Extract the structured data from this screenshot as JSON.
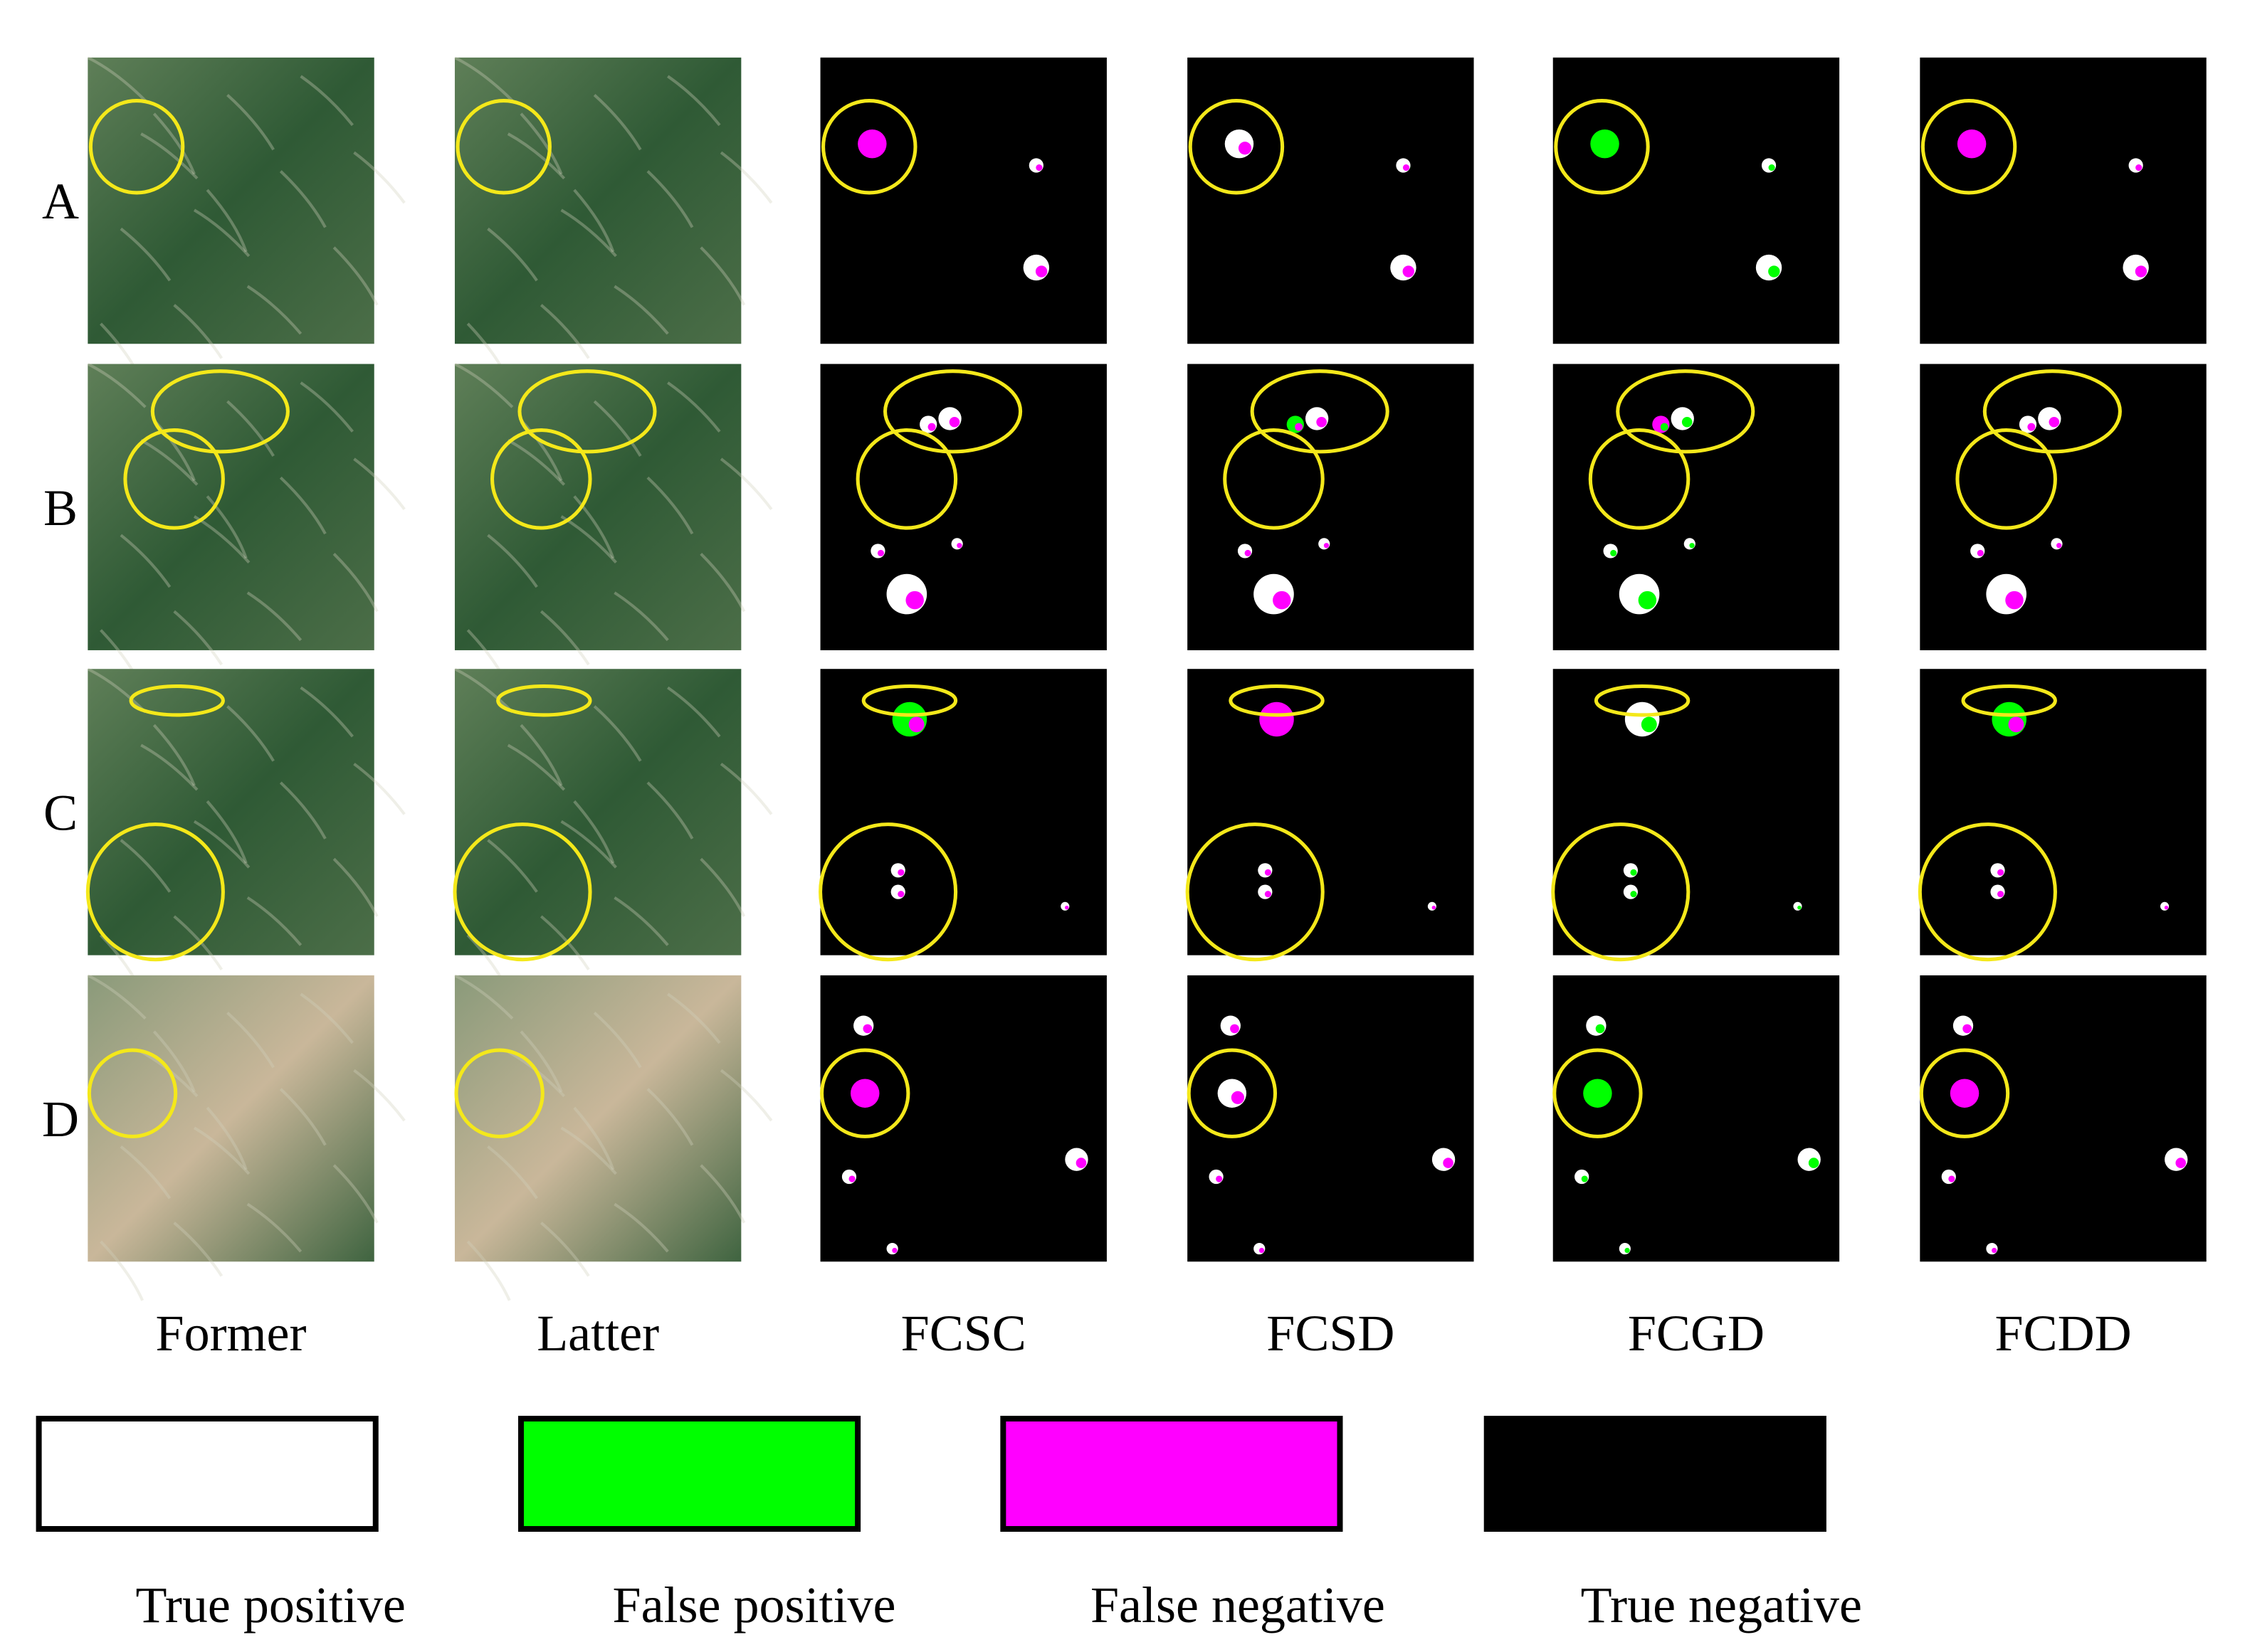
{
  "rows": [
    "A",
    "B",
    "C",
    "D"
  ],
  "columns": [
    "Former",
    "Latter",
    "FCSC",
    "FCSD",
    "FCGD",
    "FCDD"
  ],
  "legend": [
    "True positive",
    "False positive",
    "False negative",
    "True negative"
  ]
}
